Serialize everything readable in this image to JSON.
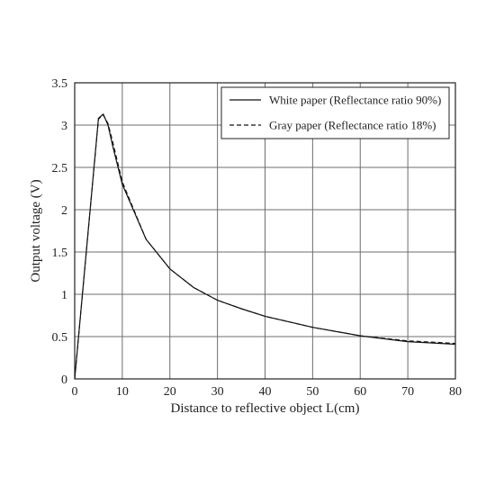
{
  "chart_data": {
    "type": "line",
    "title": "",
    "xlabel": "Distance to reflective object L(cm)",
    "ylabel": "Output voltage (V)",
    "xlim": [
      0,
      80
    ],
    "ylim": [
      0,
      3.5
    ],
    "xticks": [
      0,
      10,
      20,
      30,
      40,
      50,
      60,
      70,
      80
    ],
    "yticks": [
      0,
      0.5,
      1,
      1.5,
      2,
      2.5,
      3,
      3.5
    ],
    "xtick_labels": [
      "0",
      "10",
      "20",
      "30",
      "40",
      "50",
      "60",
      "70",
      "80"
    ],
    "ytick_labels": [
      "0",
      "0.5",
      "1",
      "1.5",
      "2",
      "2.5",
      "3",
      "3.5"
    ],
    "grid": true,
    "legend_position": "top-right",
    "series": [
      {
        "name": "White paper (Reflectance ratio 90%)",
        "style": "solid",
        "color": "#111111",
        "x": [
          0,
          5,
          6,
          7,
          8,
          10,
          15,
          20,
          25,
          30,
          35,
          40,
          50,
          60,
          70,
          80
        ],
        "y": [
          0,
          3.08,
          3.13,
          3.0,
          2.75,
          2.3,
          1.65,
          1.3,
          1.08,
          0.93,
          0.83,
          0.74,
          0.61,
          0.51,
          0.44,
          0.41
        ]
      },
      {
        "name": "Gray paper (Reflectance ratio 18%)",
        "style": "dashed",
        "color": "#111111",
        "x": [
          0,
          5,
          6,
          7,
          8,
          10,
          15,
          20,
          25,
          30,
          35,
          40,
          50,
          60,
          70,
          80
        ],
        "y": [
          0,
          3.07,
          3.12,
          3.02,
          2.8,
          2.33,
          1.65,
          1.3,
          1.08,
          0.93,
          0.83,
          0.74,
          0.61,
          0.51,
          0.45,
          0.42
        ]
      }
    ]
  }
}
